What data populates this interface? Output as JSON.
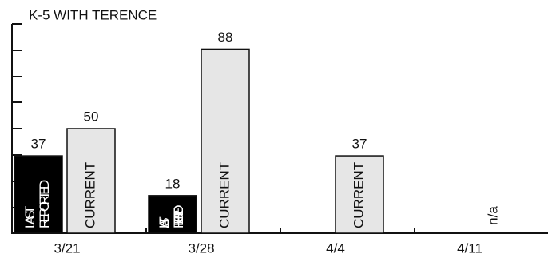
{
  "chart_data": {
    "type": "bar",
    "title": "K-5 WITH TERENCE",
    "categories": [
      "3/21",
      "3/28",
      "4/4",
      "4/11"
    ],
    "series": [
      {
        "name": "LAST REPORTED",
        "color": "#000000",
        "values": [
          37,
          18,
          null,
          null
        ]
      },
      {
        "name": "CURRENT",
        "color": "#e6e6e6",
        "values": [
          50,
          88,
          37,
          null
        ],
        "value_labels": [
          null,
          null,
          null,
          "n/a"
        ]
      }
    ],
    "ylim": [
      0,
      100
    ]
  }
}
